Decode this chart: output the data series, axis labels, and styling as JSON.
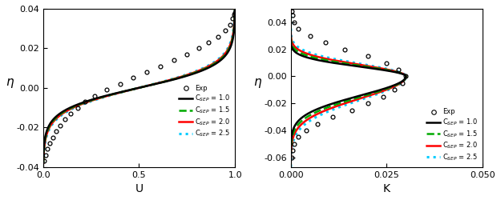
{
  "left_panel": {
    "xlabel": "U",
    "ylabel": "η",
    "xlim": [
      0.0,
      1.0
    ],
    "ylim": [
      -0.04,
      0.04
    ],
    "xticks": [
      0.0,
      0.5,
      1.0
    ],
    "yticks": [
      -0.04,
      -0.02,
      0.0,
      0.02,
      0.04
    ]
  },
  "right_panel": {
    "xlabel": "K",
    "ylabel": "η",
    "xlim": [
      0.0,
      0.05
    ],
    "ylim": [
      -0.067,
      0.05
    ],
    "xticks": [
      0.0,
      0.025,
      0.05
    ],
    "yticks": [
      -0.06,
      -0.04,
      -0.02,
      0.0,
      0.02,
      0.04
    ]
  },
  "legend": {
    "exp_label": "Exp",
    "lines": [
      {
        "label": "C$_{SEP}$ = 1.0",
        "color": "#000000",
        "ls": "solid",
        "lw": 1.8
      },
      {
        "label": "C$_{SEP}$ = 1.5",
        "color": "#00aa00",
        "ls": "dashed",
        "lw": 1.8
      },
      {
        "label": "C$_{SEP}$ = 2.0",
        "color": "#ff0000",
        "ls": "solid",
        "lw": 1.8
      },
      {
        "label": "C$_{SEP}$ = 2.5",
        "color": "#00ccff",
        "ls": "dotted",
        "lw": 2.2
      }
    ]
  },
  "bg_color": "#ffffff",
  "exp_left_eta": [
    -0.037,
    -0.034,
    -0.031,
    -0.028,
    -0.025,
    -0.022,
    -0.019,
    -0.016,
    -0.013,
    -0.01,
    -0.007,
    -0.004,
    -0.001,
    0.002,
    0.005,
    0.008,
    0.011,
    0.014,
    0.017,
    0.02,
    0.023,
    0.026,
    0.029,
    0.032,
    0.035,
    0.037,
    0.038
  ],
  "exp_left_U": [
    0.005,
    0.012,
    0.022,
    0.035,
    0.05,
    0.068,
    0.09,
    0.115,
    0.145,
    0.18,
    0.22,
    0.27,
    0.33,
    0.4,
    0.47,
    0.54,
    0.61,
    0.68,
    0.75,
    0.81,
    0.86,
    0.91,
    0.95,
    0.975,
    0.988,
    0.995,
    1.0
  ],
  "exp_right_eta": [
    -0.06,
    -0.055,
    -0.05,
    -0.045,
    -0.04,
    -0.035,
    -0.03,
    -0.025,
    -0.02,
    -0.015,
    -0.01,
    -0.005,
    0.0,
    0.005,
    0.01,
    0.015,
    0.02,
    0.025,
    0.03,
    0.035,
    0.04,
    0.045,
    0.048
  ],
  "exp_right_K": [
    0.0003,
    0.0005,
    0.001,
    0.002,
    0.004,
    0.007,
    0.011,
    0.016,
    0.02,
    0.024,
    0.027,
    0.029,
    0.03,
    0.028,
    0.025,
    0.02,
    0.014,
    0.009,
    0.005,
    0.002,
    0.001,
    0.0004,
    0.0002
  ]
}
